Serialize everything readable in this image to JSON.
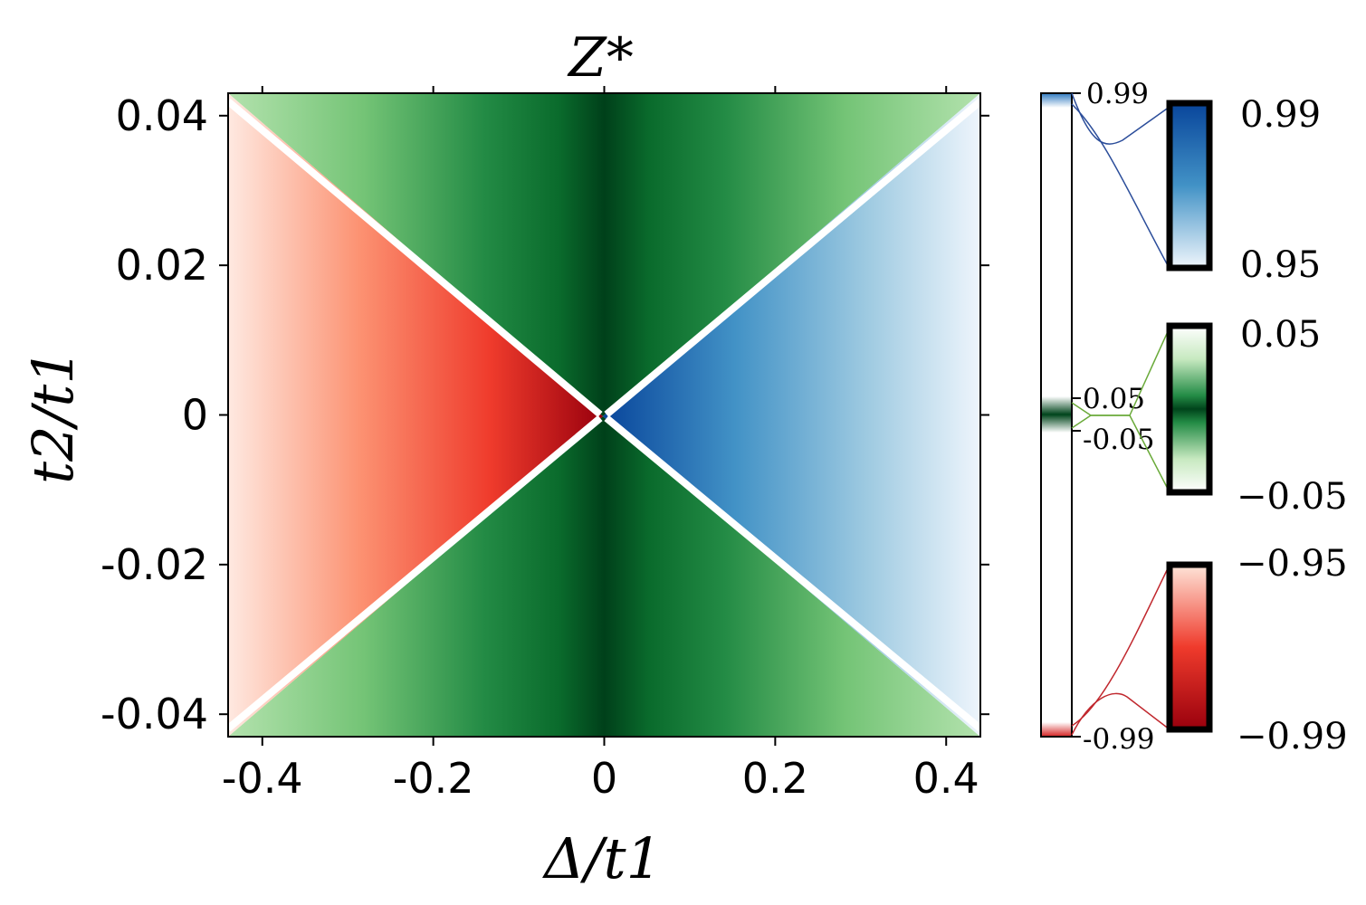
{
  "chart_data": {
    "type": "heatmap",
    "title": "Z*",
    "xlabel": "Δ/t1",
    "ylabel": "t2/t1",
    "xlim": [
      -0.44,
      0.44
    ],
    "ylim": [
      -0.043,
      0.043
    ],
    "x_ticks": [
      -0.4,
      -0.2,
      0,
      0.2,
      0.4
    ],
    "x_tick_labels": [
      "-0.4",
      "-0.2",
      "0",
      "0.2",
      "0.4"
    ],
    "y_ticks": [
      0.04,
      0.02,
      0,
      -0.02,
      -0.04
    ],
    "y_tick_labels": [
      "0.04",
      "0.02",
      "0",
      "-0.02",
      "-0.04"
    ],
    "regions": [
      {
        "name": "left",
        "condition": "Δ < -|t2|·10",
        "range": [
          -0.99,
          -0.95
        ],
        "colormap": "Reds"
      },
      {
        "name": "right",
        "condition": "Δ > |t2|·10",
        "range": [
          0.95,
          0.99
        ],
        "colormap": "Blues"
      },
      {
        "name": "top/bottom",
        "condition": "|Δ| < |t2|·10",
        "range": [
          -0.05,
          0.05
        ],
        "colormap": "Greens"
      }
    ],
    "colorbar": {
      "main_labels": {
        "top": "0.99",
        "upper_mid": "0.05",
        "lower_mid": "-0.05",
        "bottom": "-0.99"
      },
      "zoom_blue": {
        "top": "0.99",
        "bottom": "0.95"
      },
      "zoom_green": {
        "top": "0.05",
        "bottom": "−0.05"
      },
      "zoom_red": {
        "top": "−0.95",
        "bottom": "−0.99"
      }
    },
    "colors": {
      "red_dark": "#9e0e18",
      "red_light": "#fee5d9",
      "blue_dark": "#08459b",
      "blue_light": "#eef5fc",
      "green_dark": "#00441b",
      "green_light": "#b3e2ad",
      "line_blue": "#2b4d9a",
      "line_green": "#6aaa3a",
      "line_red": "#c0272d"
    }
  }
}
